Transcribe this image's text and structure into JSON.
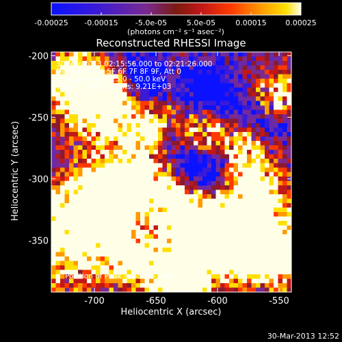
{
  "colorbar": {
    "ticks": [
      "-0.00025",
      "-0.00015",
      "-5.0e-05",
      "5.0e-05",
      "0.00015",
      "0.00025"
    ],
    "tick_values": [
      -0.00025,
      -0.00015,
      -5e-05,
      5e-05,
      0.00015,
      0.00025
    ],
    "range": [
      -0.00025,
      0.00025
    ],
    "unit_label": "(photons cm⁻² s⁻¹ asec⁻²)",
    "colors": [
      "#0b12ff",
      "#3a1ad8",
      "#6b24c7",
      "#7a2a90",
      "#8a1a30",
      "#c01818",
      "#ff3a00",
      "#ff9a00",
      "#ffe000",
      "#ffffe8"
    ]
  },
  "title": "Reconstructed RHESSI Image",
  "info_lines": [
    "30-Mar-2013 02:15:56.000 to 02:21:26.000",
    "Detectors: 3F 5F 6F 7F 8F 9F, Att 0",
    "Energy Range: 25.0 - 50.0 keV",
    "Clean     Total counts: 9.21E+03"
  ],
  "peak_label": "Position of Peak = [-568,-364]",
  "xaxis": {
    "label": "Heliocentric X (arcsec)",
    "ticks": [
      "-700",
      "-650",
      "-600",
      "-550"
    ],
    "tick_values": [
      -700,
      -650,
      -600,
      -550
    ],
    "range": [
      -735,
      -540
    ]
  },
  "yaxis": {
    "label": "Heliocentric Y (arcsec)",
    "ticks": [
      "-200",
      "-250",
      "-300",
      "-350"
    ],
    "tick_values": [
      -200,
      -250,
      -300,
      -350
    ],
    "range": [
      -392,
      -197
    ]
  },
  "footer_date": "30-Mar-2013 12:52"
}
